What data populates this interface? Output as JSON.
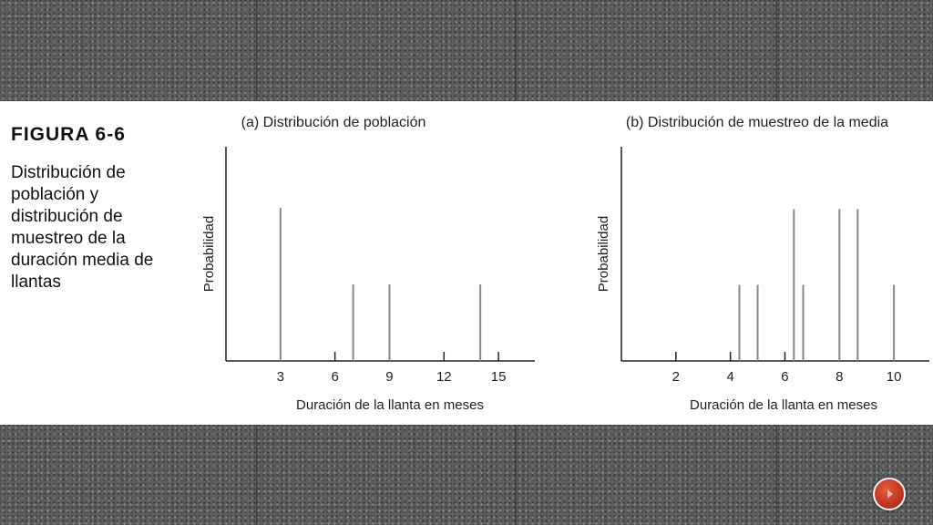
{
  "slide": {
    "figure_title": "FIGURA 6-6",
    "caption": "Distribución de población y distribución de muestreo de la duración media de llantas"
  },
  "chart_data": [
    {
      "type": "bar",
      "title": "(a) Distribución de población",
      "xlabel": "Duración de la llanta en meses",
      "ylabel": "Probabilidad",
      "xticks": [
        3,
        6,
        9,
        12,
        15
      ],
      "xlim": [
        0,
        17
      ],
      "ylim": [
        0,
        0.35
      ],
      "x": [
        3,
        7,
        9,
        14
      ],
      "values": [
        0.25,
        0.125,
        0.125,
        0.125
      ],
      "grid": false,
      "color": "#888888"
    },
    {
      "type": "bar",
      "title": "(b) Distribución de muestreo de la media",
      "xlabel": "Duración de la llanta en meses",
      "ylabel": "Probabilidad",
      "xticks": [
        2,
        4,
        6,
        8,
        10
      ],
      "xlim": [
        0,
        11.3
      ],
      "ylim": [
        0,
        0.22
      ],
      "x": [
        4.33,
        5,
        6.33,
        6.67,
        8,
        8.67,
        10
      ],
      "values": [
        0.078,
        0.078,
        0.156,
        0.078,
        0.156,
        0.156,
        0.078
      ],
      "grid": false,
      "color": "#888888"
    }
  ],
  "nav": {
    "next_icon": "next-arrow-icon",
    "accent": "#c8381e"
  }
}
